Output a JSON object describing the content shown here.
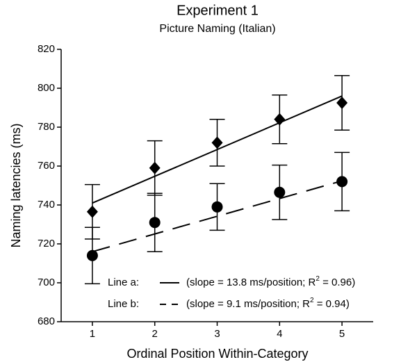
{
  "chart_data": {
    "type": "scatter",
    "title": "Experiment 1",
    "subtitle": "Picture Naming (Italian)",
    "x_label": "Ordinal Position Within-Category",
    "y_label": "Naming latencies (ms)",
    "x": [
      1,
      2,
      3,
      4,
      5
    ],
    "xlim": [
      0.5,
      5.5
    ],
    "xticks": [
      1,
      2,
      3,
      4,
      5
    ],
    "ylim": [
      680,
      820
    ],
    "yticks": [
      680,
      700,
      720,
      740,
      760,
      780,
      800,
      820
    ],
    "series": [
      {
        "marker": "diamond",
        "color": "#000000",
        "values": [
          736.5,
          759,
          772,
          784,
          792.5
        ],
        "errors": [
          14,
          14,
          12,
          12.5,
          14
        ]
      },
      {
        "marker": "circle",
        "color": "#000000",
        "values": [
          714,
          731,
          739,
          746.5,
          752
        ],
        "errors": [
          14.5,
          15,
          12,
          14,
          15
        ]
      }
    ],
    "fits": [
      {
        "label": "Line a:",
        "text": "(slope = 13.8 ms/position; R",
        "sup": "2",
        "text_end": " = 0.96)",
        "dashed": false,
        "x": [
          1,
          5
        ],
        "y": [
          741,
          796
        ]
      },
      {
        "label": "Line b:",
        "text": "(slope = 9.1 ms/position; R",
        "sup": "2",
        "text_end": " = 0.94)",
        "dashed": true,
        "x": [
          1,
          5
        ],
        "y": [
          716,
          752.4
        ]
      }
    ]
  }
}
